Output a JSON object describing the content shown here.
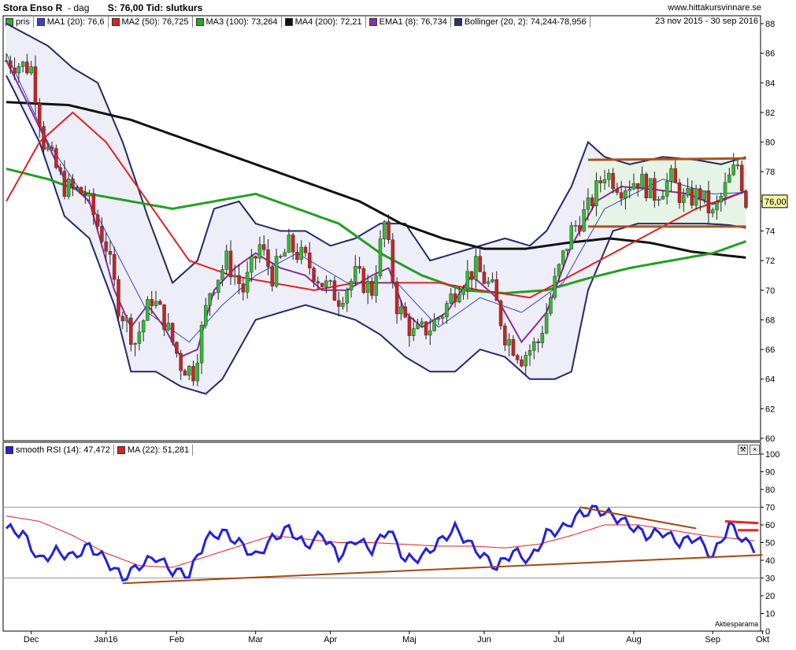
{
  "header": {
    "title": "Stora Enso R",
    "interval": "dag",
    "last_label": "S: 76,00",
    "time_label": "Tid: slutkurs"
  },
  "site": "www.hittakursvinnare.se",
  "date_range": "23 nov 2015 - 30 sep 2016",
  "price_legend": [
    {
      "label": "pris",
      "color": "#33aa33"
    },
    {
      "label": "MA1 (20): 76,6",
      "color": "#3344cc"
    },
    {
      "label": "MA2 (50): 76,725",
      "color": "#dd2222"
    },
    {
      "label": "MA3 (100): 73,264",
      "color": "#22aa22"
    },
    {
      "label": "MA4 (200): 72,21",
      "color": "#111111"
    },
    {
      "label": "EMA1 (8): 76,734",
      "color": "#8833aa"
    },
    {
      "label": "Bollinger (20, 2): 74,244-78,956",
      "color": "#223377"
    }
  ],
  "rsi_legend": [
    {
      "label": "smooth RSI (14): 47,472",
      "color": "#2222dd"
    },
    {
      "label": "MA (22): 51,281",
      "color": "#dd2222"
    }
  ],
  "last_price_label": "76,00",
  "credit": "Aktiesparama",
  "icon_names": [
    "wrench-icon",
    "close-icon"
  ],
  "icon_glyphs": [
    "⚒",
    "×"
  ],
  "chart_data": {
    "type": "candlestick",
    "x_labels": [
      "Dec",
      "Jan16",
      "Feb",
      "Mar",
      "Apr",
      "Maj",
      "Jun",
      "Jul",
      "Aug",
      "Sep",
      "Okt"
    ],
    "price_axis": {
      "ylim": [
        60,
        88
      ],
      "ticks": [
        60,
        62,
        64,
        66,
        68,
        70,
        72,
        74,
        76,
        78,
        80,
        82,
        84,
        86,
        88
      ]
    },
    "rsi_axis": {
      "ylim": [
        0,
        100
      ],
      "ticks": [
        0,
        10,
        20,
        30,
        40,
        50,
        60,
        70,
        80,
        90,
        100
      ],
      "levels": [
        30,
        70
      ]
    },
    "close_anchors": [
      [
        0,
        85.5
      ],
      [
        6,
        85
      ],
      [
        9,
        80
      ],
      [
        14,
        77
      ],
      [
        19,
        76.5
      ],
      [
        24,
        73
      ],
      [
        27,
        69
      ],
      [
        31,
        66.5
      ],
      [
        35,
        69.5
      ],
      [
        38,
        68
      ],
      [
        42,
        65
      ],
      [
        45,
        64.5
      ],
      [
        49,
        70
      ],
      [
        53,
        72
      ],
      [
        57,
        70
      ],
      [
        61,
        73
      ],
      [
        64,
        71
      ],
      [
        68,
        73
      ],
      [
        72,
        72
      ],
      [
        76,
        70.5
      ],
      [
        80,
        69.5
      ],
      [
        84,
        71
      ],
      [
        88,
        70
      ],
      [
        91,
        74.5
      ],
      [
        94,
        69
      ],
      [
        98,
        67
      ],
      [
        102,
        67.5
      ],
      [
        105,
        68.5
      ],
      [
        109,
        70.5
      ],
      [
        113,
        71.5
      ],
      [
        117,
        70
      ],
      [
        120,
        67
      ],
      [
        124,
        65.5
      ],
      [
        128,
        66.5
      ],
      [
        132,
        70.5
      ],
      [
        136,
        74
      ],
      [
        140,
        75.5
      ],
      [
        144,
        78
      ],
      [
        148,
        77
      ],
      [
        152,
        77.5
      ],
      [
        156,
        76.5
      ],
      [
        160,
        77.5
      ],
      [
        163,
        76
      ],
      [
        167,
        76.5
      ],
      [
        170,
        75
      ],
      [
        174,
        77.5
      ],
      [
        176,
        78.5
      ],
      [
        178,
        76
      ]
    ],
    "ma_anchors": {
      "MA1 (20)": [
        [
          0,
          86
        ],
        [
          10,
          80
        ],
        [
          22,
          75
        ],
        [
          34,
          68.5
        ],
        [
          44,
          66.5
        ],
        [
          52,
          69
        ],
        [
          60,
          71
        ],
        [
          70,
          72.5
        ],
        [
          82,
          70.5
        ],
        [
          94,
          70.5
        ],
        [
          104,
          67.5
        ],
        [
          114,
          69.5
        ],
        [
          124,
          68.5
        ],
        [
          134,
          70.5
        ],
        [
          144,
          75.5
        ],
        [
          158,
          77.5
        ],
        [
          170,
          76.5
        ],
        [
          178,
          76.6
        ]
      ],
      "MA2 (50)": [
        [
          0,
          76
        ],
        [
          8,
          80
        ],
        [
          16,
          82
        ],
        [
          24,
          80
        ],
        [
          34,
          76
        ],
        [
          44,
          72
        ],
        [
          54,
          71
        ],
        [
          64,
          70.5
        ],
        [
          74,
          70
        ],
        [
          84,
          70.5
        ],
        [
          94,
          70.5
        ],
        [
          104,
          70.5
        ],
        [
          114,
          70
        ],
        [
          126,
          69.5
        ],
        [
          136,
          71
        ],
        [
          146,
          72.5
        ],
        [
          156,
          74
        ],
        [
          166,
          75.5
        ],
        [
          178,
          76.7
        ]
      ],
      "MA3 (100)": [
        [
          0,
          78.2
        ],
        [
          10,
          77.5
        ],
        [
          20,
          76.5
        ],
        [
          30,
          76
        ],
        [
          40,
          75.5
        ],
        [
          50,
          76
        ],
        [
          60,
          76.5
        ],
        [
          70,
          75.5
        ],
        [
          80,
          74.5
        ],
        [
          90,
          72.5
        ],
        [
          100,
          71
        ],
        [
          110,
          70
        ],
        [
          120,
          69.8
        ],
        [
          130,
          70
        ],
        [
          140,
          70.8
        ],
        [
          150,
          71.5
        ],
        [
          160,
          72
        ],
        [
          170,
          72.5
        ],
        [
          178,
          73.3
        ]
      ],
      "MA4 (200)": [
        [
          0,
          82.7
        ],
        [
          15,
          82.5
        ],
        [
          30,
          81.5
        ],
        [
          45,
          80
        ],
        [
          60,
          78.5
        ],
        [
          75,
          77
        ],
        [
          85,
          76
        ],
        [
          95,
          74.5
        ],
        [
          105,
          73.5
        ],
        [
          115,
          72.8
        ],
        [
          125,
          72.8
        ],
        [
          135,
          73.2
        ],
        [
          145,
          73.5
        ],
        [
          155,
          73.2
        ],
        [
          165,
          72.6
        ],
        [
          178,
          72.2
        ]
      ],
      "EMA1 (8)": [
        [
          0,
          85.5
        ],
        [
          8,
          81
        ],
        [
          14,
          77.5
        ],
        [
          20,
          76
        ],
        [
          26,
          70
        ],
        [
          30,
          67.5
        ],
        [
          34,
          69
        ],
        [
          38,
          67.5
        ],
        [
          42,
          65.5
        ],
        [
          46,
          66
        ],
        [
          50,
          70
        ],
        [
          55,
          71.5
        ],
        [
          60,
          72.5
        ],
        [
          66,
          71.5
        ],
        [
          72,
          71
        ],
        [
          76,
          70
        ],
        [
          82,
          70
        ],
        [
          88,
          71
        ],
        [
          92,
          71.5
        ],
        [
          96,
          68.5
        ],
        [
          100,
          67.5
        ],
        [
          106,
          68.5
        ],
        [
          112,
          71
        ],
        [
          118,
          69.5
        ],
        [
          124,
          66.5
        ],
        [
          130,
          68.5
        ],
        [
          136,
          73
        ],
        [
          142,
          76
        ],
        [
          148,
          77
        ],
        [
          156,
          76.8
        ],
        [
          164,
          76.5
        ],
        [
          170,
          75.8
        ],
        [
          178,
          76.7
        ]
      ],
      "Bollinger upper": [
        [
          0,
          88
        ],
        [
          10,
          86.5
        ],
        [
          16,
          85
        ],
        [
          22,
          84
        ],
        [
          28,
          80
        ],
        [
          34,
          75
        ],
        [
          40,
          70.5
        ],
        [
          46,
          72
        ],
        [
          50,
          75.5
        ],
        [
          56,
          76
        ],
        [
          60,
          74.5
        ],
        [
          66,
          74
        ],
        [
          72,
          74
        ],
        [
          78,
          73
        ],
        [
          84,
          73.5
        ],
        [
          90,
          74.5
        ],
        [
          96,
          74.5
        ],
        [
          102,
          72
        ],
        [
          108,
          72.5
        ],
        [
          114,
          73
        ],
        [
          120,
          73.5
        ],
        [
          126,
          73
        ],
        [
          130,
          74
        ],
        [
          136,
          77
        ],
        [
          140,
          80
        ],
        [
          144,
          79
        ],
        [
          150,
          78.5
        ],
        [
          158,
          79
        ],
        [
          166,
          78.8
        ],
        [
          172,
          78.5
        ],
        [
          178,
          79
        ]
      ],
      "Bollinger lower": [
        [
          0,
          84.5
        ],
        [
          8,
          80
        ],
        [
          14,
          75
        ],
        [
          20,
          73.5
        ],
        [
          26,
          69
        ],
        [
          30,
          64.5
        ],
        [
          36,
          64.5
        ],
        [
          42,
          63.5
        ],
        [
          48,
          63
        ],
        [
          52,
          64
        ],
        [
          56,
          66
        ],
        [
          60,
          68
        ],
        [
          66,
          68.5
        ],
        [
          72,
          69
        ],
        [
          78,
          68.5
        ],
        [
          84,
          68
        ],
        [
          90,
          67
        ],
        [
          96,
          65.5
        ],
        [
          102,
          64.5
        ],
        [
          108,
          64.5
        ],
        [
          114,
          66
        ],
        [
          120,
          65.5
        ],
        [
          126,
          64
        ],
        [
          132,
          64
        ],
        [
          136,
          64.5
        ],
        [
          140,
          70
        ],
        [
          146,
          74
        ],
        [
          152,
          74.5
        ],
        [
          160,
          74.5
        ],
        [
          168,
          74.5
        ],
        [
          174,
          74.4
        ],
        [
          178,
          74.2
        ]
      ]
    },
    "channel_lines": [
      {
        "from": [
          140,
          78.8
        ],
        "to": [
          178,
          78.9
        ]
      },
      {
        "from": [
          140,
          74.3
        ],
        "to": [
          178,
          74.3
        ]
      }
    ],
    "rsi": {
      "smooth_rsi_anchors": [
        [
          0,
          58
        ],
        [
          4,
          55
        ],
        [
          8,
          40
        ],
        [
          12,
          45
        ],
        [
          16,
          42
        ],
        [
          20,
          48
        ],
        [
          24,
          40
        ],
        [
          28,
          30
        ],
        [
          32,
          37
        ],
        [
          36,
          42
        ],
        [
          40,
          34
        ],
        [
          44,
          32
        ],
        [
          48,
          52
        ],
        [
          52,
          56
        ],
        [
          56,
          50
        ],
        [
          60,
          42
        ],
        [
          64,
          52
        ],
        [
          68,
          58
        ],
        [
          72,
          48
        ],
        [
          76,
          55
        ],
        [
          80,
          42
        ],
        [
          84,
          52
        ],
        [
          88,
          46
        ],
        [
          92,
          58
        ],
        [
          96,
          40
        ],
        [
          100,
          42
        ],
        [
          104,
          50
        ],
        [
          108,
          58
        ],
        [
          112,
          48
        ],
        [
          116,
          40
        ],
        [
          118,
          36
        ],
        [
          122,
          45
        ],
        [
          126,
          40
        ],
        [
          130,
          55
        ],
        [
          134,
          58
        ],
        [
          138,
          66
        ],
        [
          142,
          69
        ],
        [
          146,
          65
        ],
        [
          150,
          60
        ],
        [
          154,
          54
        ],
        [
          158,
          56
        ],
        [
          162,
          50
        ],
        [
          166,
          53
        ],
        [
          170,
          42
        ],
        [
          174,
          60
        ],
        [
          178,
          50
        ],
        [
          180,
          47
        ]
      ],
      "ma_anchors": [
        [
          0,
          65
        ],
        [
          8,
          62
        ],
        [
          16,
          54
        ],
        [
          24,
          44
        ],
        [
          32,
          37
        ],
        [
          40,
          36
        ],
        [
          48,
          42
        ],
        [
          56,
          48
        ],
        [
          64,
          54
        ],
        [
          72,
          52
        ],
        [
          80,
          50
        ],
        [
          88,
          50
        ],
        [
          96,
          49
        ],
        [
          104,
          48
        ],
        [
          112,
          48
        ],
        [
          120,
          47
        ],
        [
          128,
          49
        ],
        [
          136,
          54
        ],
        [
          144,
          60
        ],
        [
          152,
          60
        ],
        [
          160,
          57
        ],
        [
          168,
          54
        ],
        [
          176,
          52
        ],
        [
          180,
          51
        ]
      ],
      "trend_lines": [
        {
          "from": [
            28,
            27
          ],
          "to": [
            182,
            43
          ]
        },
        {
          "from": [
            138,
            70
          ],
          "to": [
            166,
            58
          ]
        },
        {
          "from": [
            173,
            62
          ],
          "to": [
            181,
            61
          ]
        },
        {
          "from": [
            176,
            57
          ],
          "to": [
            181,
            57
          ]
        }
      ]
    }
  }
}
